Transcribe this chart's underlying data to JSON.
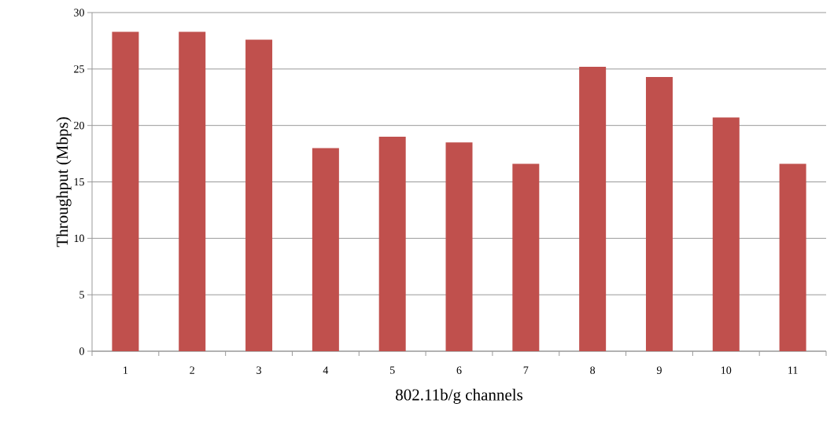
{
  "chart_data": {
    "type": "bar",
    "xlabel": "802.11b/g channels",
    "ylabel": "Throughput (Mbps)",
    "categories": [
      "1",
      "2",
      "3",
      "4",
      "5",
      "6",
      "7",
      "8",
      "9",
      "10",
      "11"
    ],
    "values": [
      28.3,
      28.3,
      27.6,
      18.0,
      19.0,
      18.5,
      16.6,
      25.2,
      24.3,
      20.7,
      16.6
    ],
    "color": "#c0504d",
    "ylim": [
      0,
      30
    ],
    "yticks": [
      0,
      5,
      10,
      15,
      20,
      25,
      30
    ],
    "grid": "y"
  }
}
